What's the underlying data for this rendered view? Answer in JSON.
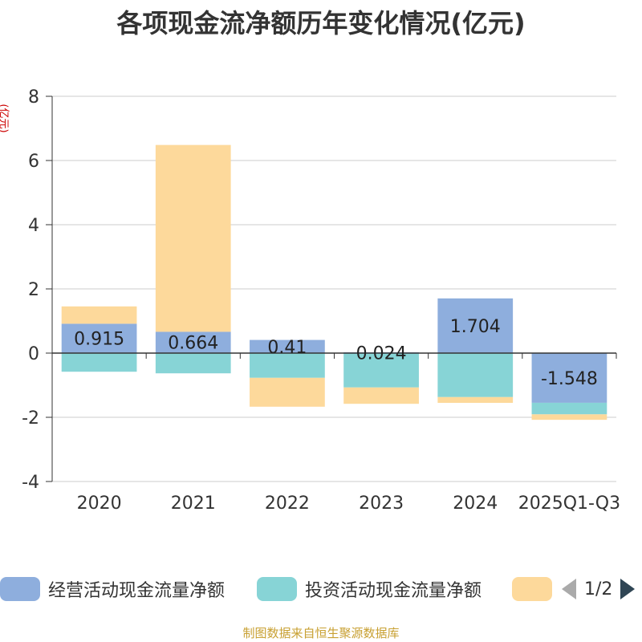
{
  "title": "各项现金流净额历年变化情况(亿元)",
  "source_note": "制图数据来自恒生聚源数据库",
  "legend": {
    "pager": "1/2",
    "items": [
      {
        "label": "经营活动现金流量净额",
        "color": "#8eaedd"
      },
      {
        "label": "投资活动现金流量净额",
        "color": "#87d4d6"
      },
      {
        "label": "",
        "color": "#fdd99b"
      }
    ]
  },
  "chart_data": {
    "type": "bar",
    "stacked": true,
    "ylabel": "(亿元)",
    "ylim": [
      -4,
      8
    ],
    "yticks": [
      -4,
      -2,
      0,
      2,
      4,
      6,
      8
    ],
    "grid": true,
    "legend_position": "bottom",
    "categories": [
      "2020",
      "2021",
      "2022",
      "2023",
      "2024",
      "2025Q1-Q3"
    ],
    "series": [
      {
        "name": "经营活动现金流量净额",
        "color": "#8eaedd",
        "values": [
          0.915,
          0.664,
          0.41,
          0.024,
          1.704,
          -1.548
        ]
      },
      {
        "name": "投资活动现金流量净额",
        "color": "#87d4d6",
        "values": [
          -0.58,
          -0.63,
          -0.77,
          -1.07,
          -1.37,
          -0.36
        ]
      },
      {
        "color": "#fdd99b",
        "values": [
          0.54,
          5.82,
          -0.9,
          -0.51,
          -0.18,
          -0.17
        ]
      }
    ],
    "data_labels": [
      "0.915",
      "0.664",
      "0.41",
      "0.024",
      "1.704",
      "-1.548"
    ]
  }
}
